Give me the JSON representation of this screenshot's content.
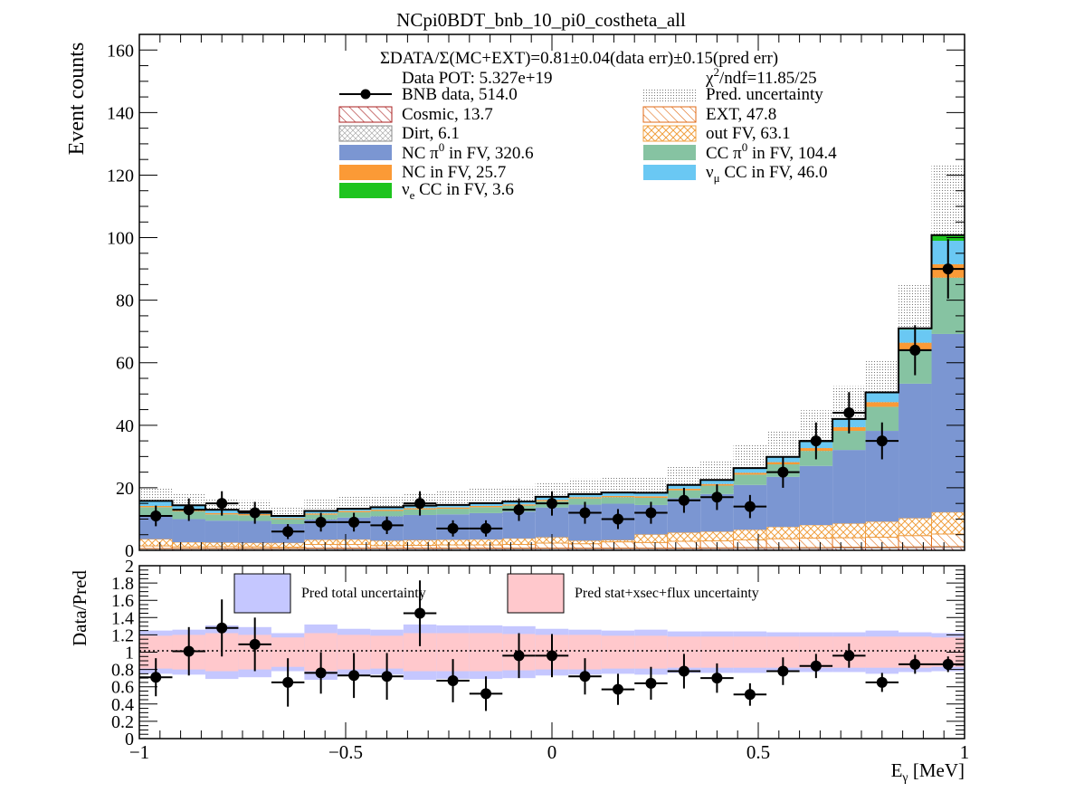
{
  "chart_data": [
    {
      "type": "bar",
      "title": "NCpi0BDT_bnb_10_pi0_costheta_all",
      "ylabel": "Event counts",
      "xlim": [
        -1,
        1
      ],
      "ylim": [
        0,
        165
      ],
      "bin_edges": [
        -1,
        -0.92,
        -0.84,
        -0.76,
        -0.68,
        -0.6,
        -0.52,
        -0.44,
        -0.36,
        -0.28,
        -0.2,
        -0.12,
        -0.04,
        0.04,
        0.12,
        0.2,
        0.28,
        0.36,
        0.44,
        0.52,
        0.6,
        0.68,
        0.76,
        0.84,
        0.92,
        1.0
      ],
      "x": [
        -0.96,
        -0.88,
        -0.8,
        -0.72,
        -0.64,
        -0.56,
        -0.48,
        -0.4,
        -0.32,
        -0.24,
        -0.16,
        -0.08,
        0.0,
        0.08,
        0.16,
        0.24,
        0.32,
        0.4,
        0.48,
        0.56,
        0.64,
        0.72,
        0.8,
        0.88,
        0.96
      ],
      "xticks": [
        "−1",
        "−0.5",
        "0",
        "0.5",
        "1"
      ],
      "yticks": [
        "0",
        "20",
        "40",
        "60",
        "80",
        "100",
        "120",
        "140",
        "160"
      ],
      "annotations": {
        "ratio_line": "ΣDATA/Σ(MC+EXT)=0.81±0.04(data err)±0.15(pred err)",
        "pot": "Data POT: 5.327e+19",
        "chi2_prefix": "χ",
        "chi2_exp": "2",
        "chi2_suffix": "/ndf=11.85/25"
      },
      "legend": {
        "data": "BNB data, 514.0",
        "cosmic": "Cosmic, 13.7",
        "dirt": "Dirt, 6.1",
        "ncpi0_a": "NC π",
        "ncpi0_sup": "0",
        "ncpi0_b": " in FV,  320.6",
        "nc": "NC in FV, 25.7",
        "nue_a": "ν",
        "nue_sub": "e",
        "nue_b": " CC in FV, 3.6",
        "pred_unc": "Pred. uncertainty",
        "ext": "EXT, 47.8",
        "outfv": "out FV, 63.1",
        "ccpi0_a": "CC π",
        "ccpi0_sup": "0",
        "ccpi0_b": " in FV, 104.4",
        "numu_a": "ν",
        "numu_sub": "μ",
        "numu_b": " CC in FV, 46.0"
      },
      "colors": {
        "ncpi0": "#7b96d2",
        "ccpi0": "#86c3a2",
        "nc": "#fb9a36",
        "numu": "#6ac8f3",
        "nue": "#1ec41e",
        "ext_hatch": "#e06a14",
        "outfv_hatch": "#f0a040",
        "cosmic_hatch": "#a81e1e",
        "dirt_hatch": "#999999",
        "pred_unc": "#888888",
        "ratio_total": "#c5c7ff",
        "ratio_stat": "#ffc8cc"
      },
      "series": [
        {
          "name": "Cosmic, 13.7",
          "values": [
            0.4,
            0.4,
            0.4,
            0.4,
            0.4,
            0.5,
            0.5,
            0.5,
            0.5,
            0.5,
            0.5,
            0.5,
            0.5,
            0.5,
            0.5,
            0.5,
            0.5,
            0.5,
            0.6,
            0.6,
            0.6,
            0.7,
            0.7,
            0.8,
            0.9
          ]
        },
        {
          "name": "Dirt, 6.1",
          "values": [
            0.2,
            0.2,
            0.2,
            0.2,
            0.2,
            0.2,
            0.2,
            0.2,
            0.2,
            0.2,
            0.2,
            0.2,
            0.2,
            0.2,
            0.2,
            0.2,
            0.2,
            0.3,
            0.3,
            0.3,
            0.3,
            0.3,
            0.3,
            0.3,
            0.3
          ]
        },
        {
          "name": "EXT, 47.8",
          "values": [
            0.8,
            0.5,
            0.6,
            0.5,
            0.4,
            1.2,
            1.2,
            0.8,
            0.9,
            1.0,
            1.0,
            1.2,
            1.6,
            1.4,
            2.0,
            1.8,
            2.2,
            2.2,
            2.4,
            2.8,
            3.0,
            3.0,
            3.2,
            3.6,
            4.0
          ]
        },
        {
          "name": "out FV, 63.1",
          "values": [
            2.2,
            1.5,
            1.3,
            1.3,
            1.4,
            1.5,
            1.6,
            1.6,
            1.7,
            1.7,
            1.8,
            1.9,
            1.9,
            1.0,
            0.6,
            2.6,
            2.8,
            3.0,
            3.3,
            3.8,
            4.2,
            4.6,
            5.0,
            5.6,
            7.0
          ]
        },
        {
          "name": "NC π0 in FV,  320.6",
          "values": [
            7.4,
            7.4,
            7.0,
            7.0,
            6.0,
            6.5,
            7.0,
            7.8,
            8.0,
            8.1,
            8.4,
            8.6,
            9.5,
            11.5,
            11.6,
            9.4,
            11.0,
            12.0,
            14.3,
            16.0,
            18.9,
            23.5,
            29.0,
            43.0,
            57.0
          ]
        },
        {
          "name": "CC π0 in FV, 104.4",
          "values": [
            2.8,
            2.5,
            2.0,
            1.8,
            1.6,
            1.5,
            1.7,
            1.7,
            1.8,
            1.8,
            1.9,
            1.9,
            2.0,
            2.0,
            2.1,
            2.3,
            2.5,
            2.7,
            3.3,
            4.0,
            4.8,
            6.1,
            7.7,
            10.6,
            18.0
          ]
        },
        {
          "name": "NC in FV, 25.7",
          "values": [
            0.4,
            0.4,
            0.4,
            0.4,
            0.3,
            0.4,
            0.4,
            0.4,
            0.4,
            0.4,
            0.4,
            0.4,
            0.4,
            0.4,
            0.4,
            0.5,
            0.5,
            0.5,
            0.6,
            0.7,
            0.9,
            1.2,
            1.5,
            2.5,
            4.3
          ]
        },
        {
          "name": "νμ CC in FV, 46.0",
          "values": [
            1.5,
            1.4,
            1.0,
            0.8,
            0.6,
            0.7,
            0.6,
            0.7,
            0.7,
            0.7,
            0.8,
            0.8,
            0.9,
            0.9,
            1.0,
            1.0,
            1.1,
            1.2,
            1.4,
            1.6,
            2.0,
            2.4,
            2.9,
            4.2,
            7.5
          ]
        },
        {
          "name": "νe CC in FV, 3.6",
          "values": [
            0.1,
            0.1,
            0.1,
            0.1,
            0.1,
            0.1,
            0.1,
            0.1,
            0.1,
            0.1,
            0.1,
            0.1,
            0.1,
            0.1,
            0.1,
            0.1,
            0.1,
            0.1,
            0.1,
            0.1,
            0.2,
            0.2,
            0.2,
            0.4,
            1.8
          ]
        }
      ],
      "pred_uncertainty": [
        4.0,
        4.0,
        3.7,
        3.5,
        3.0,
        3.6,
        3.9,
        3.9,
        4.1,
        4.5,
        4.6,
        4.7,
        4.6,
        4.9,
        4.8,
        4.9,
        5.8,
        6.4,
        7.5,
        8.4,
        9.9,
        10.5,
        10.0,
        14.4,
        22.7
      ],
      "data": {
        "values": [
          11,
          13,
          15,
          12,
          6,
          9,
          9,
          8,
          15,
          7,
          7,
          13,
          15,
          12,
          10,
          12,
          16,
          17,
          14,
          25,
          35,
          44,
          35,
          64,
          90
        ],
        "errors": [
          3.3,
          3.6,
          3.9,
          3.5,
          2.4,
          3.0,
          3.0,
          2.8,
          3.9,
          2.6,
          2.6,
          3.6,
          3.9,
          3.5,
          3.2,
          3.5,
          4.0,
          4.1,
          3.7,
          5.0,
          5.9,
          6.6,
          5.9,
          8.0,
          9.5
        ]
      }
    },
    {
      "type": "scatter",
      "ylabel": "Data/Pred",
      "xlabel_a": "E",
      "xlabel_sub": "γ",
      "xlabel_b": " [MeV]",
      "xlim": [
        -1,
        1
      ],
      "ylim": [
        0,
        2
      ],
      "yticks": [
        "0",
        "0.2",
        "0.4",
        "0.6",
        "0.8",
        "1",
        "1.2",
        "1.4",
        "1.6",
        "1.8",
        "2"
      ],
      "legend": {
        "total": "Pred total uncertainty",
        "stat": "Pred stat+xsec+flux uncertainty"
      },
      "total_band": [
        0.25,
        0.26,
        0.31,
        0.29,
        0.22,
        0.32,
        0.27,
        0.26,
        0.32,
        0.31,
        0.31,
        0.3,
        0.27,
        0.26,
        0.25,
        0.26,
        0.24,
        0.24,
        0.24,
        0.23,
        0.23,
        0.23,
        0.25,
        0.23,
        0.22
      ],
      "stat_band": [
        0.19,
        0.2,
        0.22,
        0.2,
        0.17,
        0.22,
        0.2,
        0.19,
        0.22,
        0.22,
        0.22,
        0.21,
        0.2,
        0.2,
        0.19,
        0.19,
        0.18,
        0.18,
        0.18,
        0.18,
        0.18,
        0.18,
        0.18,
        0.18,
        0.17
      ],
      "values": [
        0.71,
        1.01,
        1.28,
        1.09,
        0.65,
        0.76,
        0.73,
        0.72,
        1.45,
        0.67,
        0.52,
        0.96,
        0.96,
        0.72,
        0.57,
        0.64,
        0.78,
        0.7,
        0.51,
        0.78,
        0.84,
        0.96,
        0.65,
        0.86,
        0.86
      ],
      "errors": [
        0.22,
        0.28,
        0.33,
        0.31,
        0.28,
        0.24,
        0.26,
        0.27,
        0.38,
        0.25,
        0.2,
        0.26,
        0.25,
        0.21,
        0.18,
        0.19,
        0.2,
        0.17,
        0.13,
        0.16,
        0.14,
        0.14,
        0.11,
        0.11,
        0.09
      ]
    }
  ]
}
